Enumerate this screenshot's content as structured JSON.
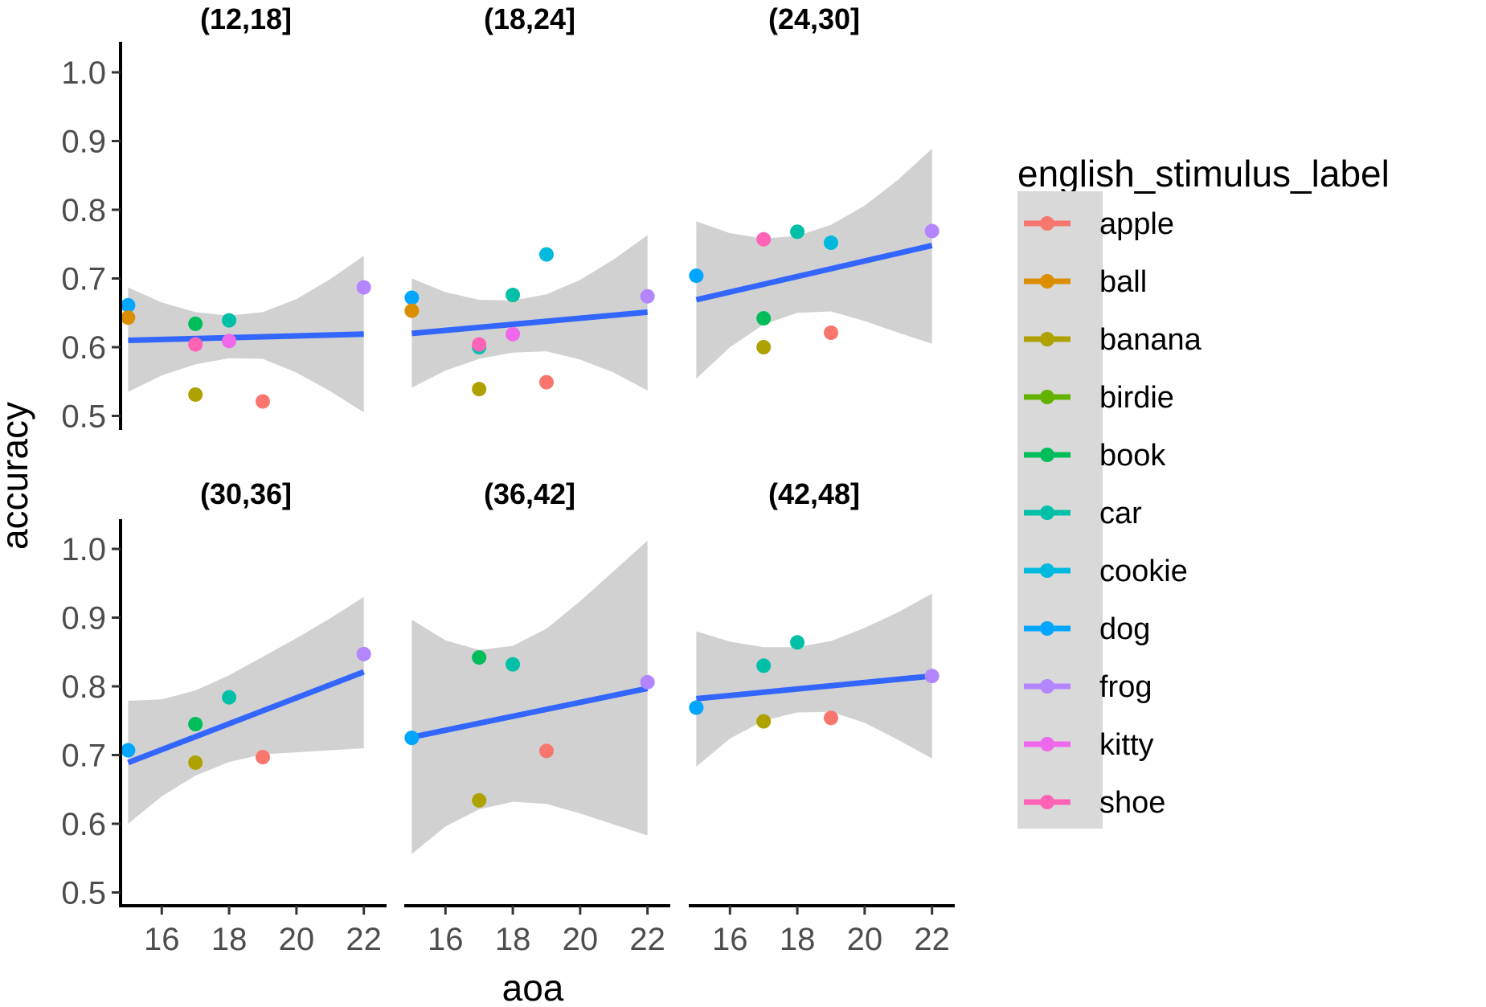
{
  "chart_data": {
    "type": "scatter",
    "xlabel": "aoa",
    "ylabel": "accuracy",
    "xlim": [
      14.8,
      22.3
    ],
    "ylim": [
      0.48,
      1.03
    ],
    "x_ticks": [
      16,
      18,
      20,
      22
    ],
    "y_ticks": [
      0.5,
      0.6,
      0.7,
      0.8,
      0.9,
      1.0
    ],
    "y_tick_labels": [
      "0.5",
      "0.6",
      "0.7",
      "0.8",
      "0.9",
      "1.0"
    ],
    "grid": false,
    "legend": {
      "title": "english_stimulus_label",
      "placement": "right",
      "entries": [
        {
          "label": "apple",
          "color": "#F8766D"
        },
        {
          "label": "ball",
          "color": "#DB8E00"
        },
        {
          "label": "banana",
          "color": "#AEA200"
        },
        {
          "label": "birdie",
          "color": "#64B200"
        },
        {
          "label": "book",
          "color": "#00BD5C"
        },
        {
          "label": "car",
          "color": "#00C1A7"
        },
        {
          "label": "cookie",
          "color": "#00BADE"
        },
        {
          "label": "dog",
          "color": "#00A6FF"
        },
        {
          "label": "frog",
          "color": "#B385FF"
        },
        {
          "label": "kitty",
          "color": "#EF67EB"
        },
        {
          "label": "shoe",
          "color": "#FF63B6"
        }
      ]
    },
    "smooth_color": "#3366FF",
    "ribbon_color": "#cccccc",
    "facets": [
      {
        "title": "(12,18]",
        "line": {
          "x": [
            15,
            22
          ],
          "y": [
            0.61,
            0.619
          ]
        },
        "ribbon": {
          "x": [
            15,
            16,
            17,
            18,
            19,
            20,
            21,
            22
          ],
          "upper": [
            0.687,
            0.665,
            0.651,
            0.646,
            0.651,
            0.67,
            0.699,
            0.733
          ],
          "lower": [
            0.535,
            0.559,
            0.575,
            0.584,
            0.583,
            0.563,
            0.536,
            0.505
          ]
        },
        "points": [
          {
            "label": "dog",
            "x": 15,
            "y": 0.661
          },
          {
            "label": "ball",
            "x": 15,
            "y": 0.643
          },
          {
            "label": "book",
            "x": 17,
            "y": 0.634
          },
          {
            "label": "shoe",
            "x": 17,
            "y": 0.604
          },
          {
            "label": "banana",
            "x": 17,
            "y": 0.531
          },
          {
            "label": "car",
            "x": 18,
            "y": 0.639
          },
          {
            "label": "kitty",
            "x": 18,
            "y": 0.609
          },
          {
            "label": "apple",
            "x": 19,
            "y": 0.521
          },
          {
            "label": "frog",
            "x": 22,
            "y": 0.687
          }
        ]
      },
      {
        "title": "(18,24]",
        "line": {
          "x": [
            15,
            22
          ],
          "y": [
            0.62,
            0.651
          ]
        },
        "ribbon": {
          "x": [
            15,
            16,
            17,
            18,
            19,
            20,
            21,
            22
          ],
          "upper": [
            0.7,
            0.68,
            0.669,
            0.668,
            0.677,
            0.698,
            0.728,
            0.763
          ],
          "lower": [
            0.541,
            0.566,
            0.583,
            0.592,
            0.594,
            0.582,
            0.563,
            0.537
          ]
        },
        "points": [
          {
            "label": "dog",
            "x": 15,
            "y": 0.672
          },
          {
            "label": "ball",
            "x": 15,
            "y": 0.653
          },
          {
            "label": "car",
            "x": 17,
            "y": 0.6
          },
          {
            "label": "shoe",
            "x": 17,
            "y": 0.604
          },
          {
            "label": "banana",
            "x": 17,
            "y": 0.539
          },
          {
            "label": "car",
            "x": 18,
            "y": 0.676
          },
          {
            "label": "kitty",
            "x": 18,
            "y": 0.619
          },
          {
            "label": "cookie",
            "x": 19,
            "y": 0.735
          },
          {
            "label": "apple",
            "x": 19,
            "y": 0.549
          },
          {
            "label": "frog",
            "x": 22,
            "y": 0.674
          }
        ]
      },
      {
        "title": "(24,30]",
        "line": {
          "x": [
            15,
            22
          ],
          "y": [
            0.669,
            0.748
          ]
        },
        "ribbon": {
          "x": [
            15,
            16,
            17,
            18,
            19,
            20,
            21,
            22
          ],
          "upper": [
            0.783,
            0.766,
            0.758,
            0.762,
            0.778,
            0.806,
            0.844,
            0.889
          ],
          "lower": [
            0.554,
            0.6,
            0.633,
            0.65,
            0.652,
            0.638,
            0.621,
            0.605
          ]
        },
        "points": [
          {
            "label": "dog",
            "x": 15,
            "y": 0.704
          },
          {
            "label": "shoe",
            "x": 17,
            "y": 0.757
          },
          {
            "label": "book",
            "x": 17,
            "y": 0.642
          },
          {
            "label": "banana",
            "x": 17,
            "y": 0.6
          },
          {
            "label": "car",
            "x": 18,
            "y": 0.768
          },
          {
            "label": "cookie",
            "x": 19,
            "y": 0.752
          },
          {
            "label": "apple",
            "x": 19,
            "y": 0.621
          },
          {
            "label": "frog",
            "x": 22,
            "y": 0.769
          }
        ]
      },
      {
        "title": "(30,36]",
        "line": {
          "x": [
            15,
            22
          ],
          "y": [
            0.689,
            0.821
          ]
        },
        "ribbon": {
          "x": [
            15,
            16,
            17,
            18,
            19,
            20,
            21,
            22
          ],
          "upper": [
            0.779,
            0.781,
            0.794,
            0.816,
            0.843,
            0.87,
            0.899,
            0.93
          ],
          "lower": [
            0.6,
            0.64,
            0.67,
            0.69,
            0.701,
            0.704,
            0.707,
            0.71
          ]
        },
        "points": [
          {
            "label": "dog",
            "x": 15,
            "y": 0.707
          },
          {
            "label": "book",
            "x": 17,
            "y": 0.745
          },
          {
            "label": "banana",
            "x": 17,
            "y": 0.689
          },
          {
            "label": "car",
            "x": 18,
            "y": 0.784
          },
          {
            "label": "apple",
            "x": 19,
            "y": 0.697
          },
          {
            "label": "frog",
            "x": 22,
            "y": 0.847
          }
        ]
      },
      {
        "title": "(36,42]",
        "line": {
          "x": [
            15,
            22
          ],
          "y": [
            0.726,
            0.797
          ]
        },
        "ribbon": {
          "x": [
            15,
            16,
            17,
            18,
            19,
            20,
            21,
            22
          ],
          "upper": [
            0.897,
            0.867,
            0.853,
            0.859,
            0.884,
            0.924,
            0.968,
            1.012
          ],
          "lower": [
            0.556,
            0.596,
            0.621,
            0.632,
            0.629,
            0.615,
            0.599,
            0.583
          ]
        },
        "points": [
          {
            "label": "dog",
            "x": 15,
            "y": 0.725
          },
          {
            "label": "book",
            "x": 17,
            "y": 0.842
          },
          {
            "label": "banana",
            "x": 17,
            "y": 0.634
          },
          {
            "label": "car",
            "x": 18,
            "y": 0.832
          },
          {
            "label": "apple",
            "x": 19,
            "y": 0.706
          },
          {
            "label": "frog",
            "x": 22,
            "y": 0.806
          }
        ]
      },
      {
        "title": "(42,48]",
        "line": {
          "x": [
            15,
            22
          ],
          "y": [
            0.782,
            0.815
          ]
        },
        "ribbon": {
          "x": [
            15,
            16,
            17,
            18,
            19,
            20,
            21,
            22
          ],
          "upper": [
            0.88,
            0.865,
            0.857,
            0.857,
            0.866,
            0.885,
            0.908,
            0.935
          ],
          "lower": [
            0.683,
            0.724,
            0.75,
            0.762,
            0.763,
            0.747,
            0.722,
            0.695
          ]
        },
        "points": [
          {
            "label": "dog",
            "x": 15,
            "y": 0.769
          },
          {
            "label": "car",
            "x": 17,
            "y": 0.83
          },
          {
            "label": "banana",
            "x": 17,
            "y": 0.749
          },
          {
            "label": "car",
            "x": 18,
            "y": 0.864
          },
          {
            "label": "apple",
            "x": 19,
            "y": 0.754
          },
          {
            "label": "frog",
            "x": 22,
            "y": 0.815
          }
        ]
      }
    ]
  }
}
